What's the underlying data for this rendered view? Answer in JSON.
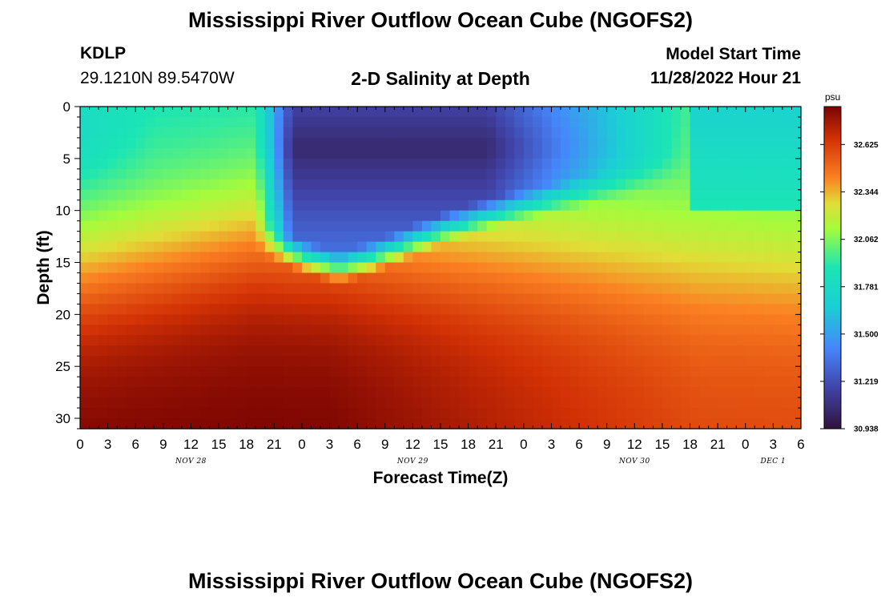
{
  "page": {
    "title": "Mississippi River Outflow Ocean Cube (NGOFS2)",
    "bottom_title": "Mississippi River Outflow Ocean Cube (NGOFS2)",
    "station_id": "KDLP",
    "station_coords": "29.1210N  89.5470W",
    "plot_title": "2-D Salinity at Depth",
    "model_start_label": "Model Start Time",
    "model_start_value": "11/28/2022 Hour 21"
  },
  "colors": {
    "low": "#30123b",
    "mid_low": "#4686fb",
    "mid": "#1be5b5",
    "mid_high": "#a4fc3c",
    "high": "#fb8022",
    "max": "#7a0403"
  },
  "chart_data": {
    "type": "heatmap",
    "title": "2-D Salinity at Depth",
    "xlabel": "Forecast Time(Z)",
    "ylabel": "Depth (ft)",
    "x_tick_labels": [
      "0",
      "3",
      "6",
      "9",
      "12",
      "15",
      "18",
      "21",
      "0",
      "3",
      "6",
      "9",
      "12",
      "15",
      "18",
      "21",
      "0",
      "3",
      "6",
      "9",
      "12",
      "15",
      "18",
      "21",
      "0",
      "3",
      "6"
    ],
    "x_range_hours": [
      0,
      78
    ],
    "date_labels": [
      {
        "label": "NOV 28",
        "hour": 12
      },
      {
        "label": "NOV 29",
        "hour": 36
      },
      {
        "label": "NOV 30",
        "hour": 60
      },
      {
        "label": "DEC 1",
        "hour": 75
      }
    ],
    "y_ticks": [
      0,
      5,
      10,
      15,
      20,
      25,
      30
    ],
    "y_range": [
      0,
      31
    ],
    "y_inverted": true,
    "colorbar": {
      "unit": "psu",
      "min": 30.938,
      "max": 32.85,
      "tick_labels": [
        "32.625",
        "32.344",
        "32.062",
        "31.781",
        "31.500",
        "31.219",
        "30.938"
      ]
    },
    "grid": false
  }
}
